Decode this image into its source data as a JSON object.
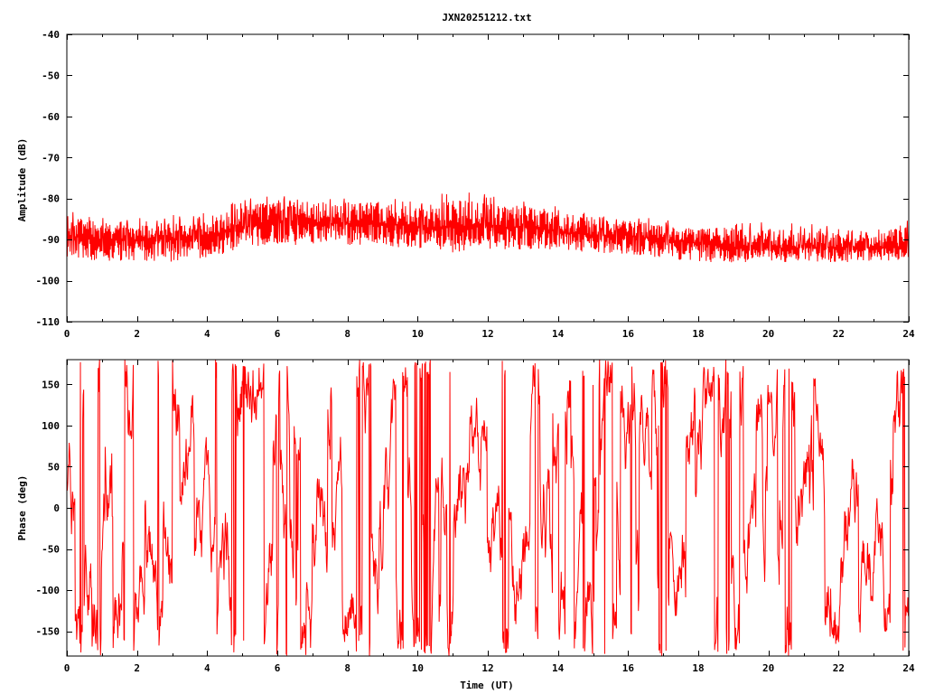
{
  "chart_data": [
    {
      "type": "line",
      "title": "JXN20251212.txt",
      "xlabel": "",
      "ylabel": "Amplitude (dB)",
      "xlim": [
        0,
        24
      ],
      "ylim": [
        -110,
        -40
      ],
      "xticks": [
        "0",
        "2",
        "4",
        "6",
        "8",
        "10",
        "12",
        "14",
        "16",
        "18",
        "20",
        "22",
        "24"
      ],
      "yticks": [
        "-40",
        "-50",
        "-60",
        "-70",
        "-80",
        "-90",
        "-100",
        "-110"
      ],
      "color": "#ff0000",
      "series": [
        {
          "x": [
            0,
            1,
            2,
            3,
            4,
            5,
            6,
            7,
            8,
            9,
            10,
            11,
            12,
            13,
            14,
            15,
            16,
            17,
            18,
            19,
            20,
            21,
            22,
            23,
            24
          ],
          "y_mean": [
            -89,
            -90,
            -90,
            -90,
            -89,
            -87,
            -86,
            -86,
            -86,
            -86,
            -87,
            -87,
            -87,
            -87,
            -88,
            -89,
            -89,
            -90,
            -91,
            -92,
            -92,
            -92,
            -92,
            -92,
            -92
          ],
          "y_min": [
            -95,
            -96,
            -96,
            -96,
            -95,
            -93,
            -92,
            -92,
            -92,
            -92,
            -93,
            -94,
            -93,
            -93,
            -93,
            -94,
            -94,
            -95,
            -96,
            -96,
            -96,
            -96,
            -96,
            -96,
            -95
          ],
          "y_max": [
            -82,
            -84,
            -84,
            -84,
            -83,
            -80,
            -79,
            -79,
            -79,
            -79,
            -80,
            -78,
            -79,
            -80,
            -82,
            -83,
            -84,
            -85,
            -86,
            -85,
            -86,
            -86,
            -87,
            -87,
            -85
          ]
        }
      ]
    },
    {
      "type": "line",
      "title": "",
      "xlabel": "Time (UT)",
      "ylabel": "Phase (deg)",
      "xlim": [
        0,
        24
      ],
      "ylim": [
        -180,
        180
      ],
      "xticks": [
        "0",
        "2",
        "4",
        "6",
        "8",
        "10",
        "12",
        "14",
        "16",
        "18",
        "20",
        "22",
        "24"
      ],
      "yticks": [
        "150",
        "100",
        "50",
        "0",
        "-50",
        "-100",
        "-150"
      ],
      "color": "#ff0000",
      "series": [
        {
          "x": [
            0,
            24
          ],
          "range": [
            -180,
            180
          ]
        }
      ]
    }
  ]
}
